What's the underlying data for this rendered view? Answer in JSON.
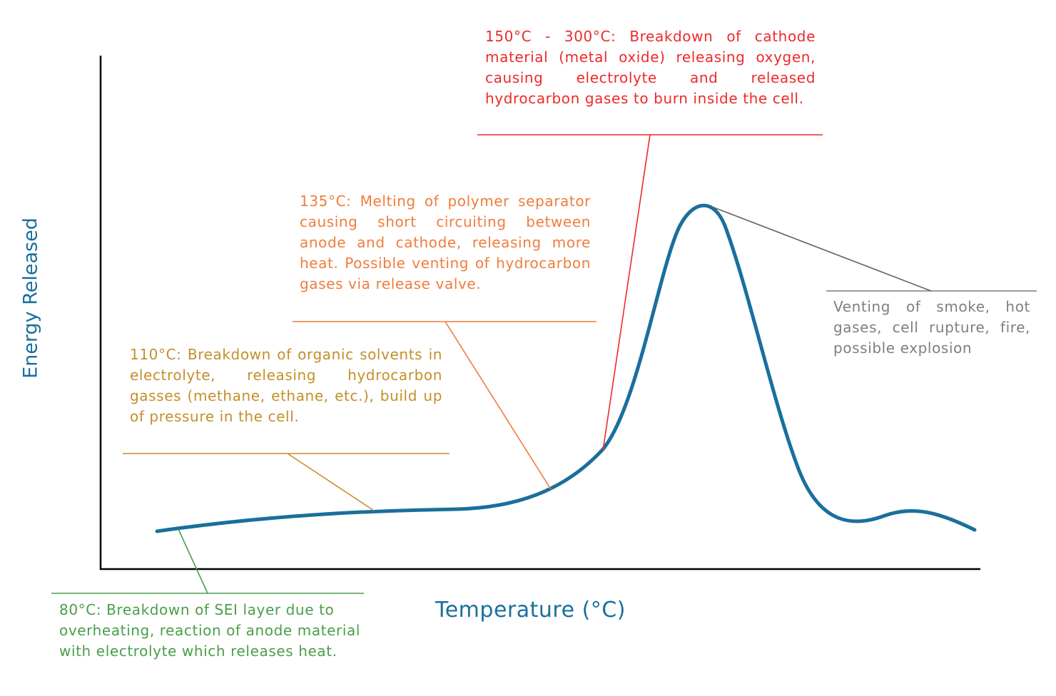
{
  "chart_data": {
    "type": "line",
    "title": "",
    "xlabel": "Temperature (°C)",
    "ylabel": "Energy Released",
    "ticks": "none",
    "series": [
      {
        "name": "Energy Released",
        "color": "#1a6f9c",
        "curve_note": "qualitative thermal runaway curve: slow rise, sharp peak, decay with small secondary bump"
      }
    ],
    "annotations": [
      {
        "id": "sei",
        "color": "#4a9e4a",
        "text": "80°C: Breakdown of SEI layer due to overheating, reaction of anode material with electrolyte which releases heat."
      },
      {
        "id": "solvents",
        "color": "#c38f2a",
        "text": "110°C: Breakdown of organic solvents in electrolyte, releasing hydrocarbon gasses (methane, ethane, etc.), build up of pressure in the cell."
      },
      {
        "id": "separator",
        "color": "#f07d3c",
        "text": "135°C: Melting of polymer separator causing short circuiting between anode and cathode, releasing more heat. Possible venting of hydrocarbon gases via release valve."
      },
      {
        "id": "cathode",
        "color": "#ee2a2a",
        "text": "150°C - 300°C: Breakdown of cathode material (metal oxide) releasing oxygen, causing electrolyte and released hydrocarbon gases to burn inside the cell."
      },
      {
        "id": "venting",
        "color": "#7f7f7f",
        "text": "Venting of smoke, hot gases, cell rupture, fire, possible explosion"
      }
    ]
  }
}
